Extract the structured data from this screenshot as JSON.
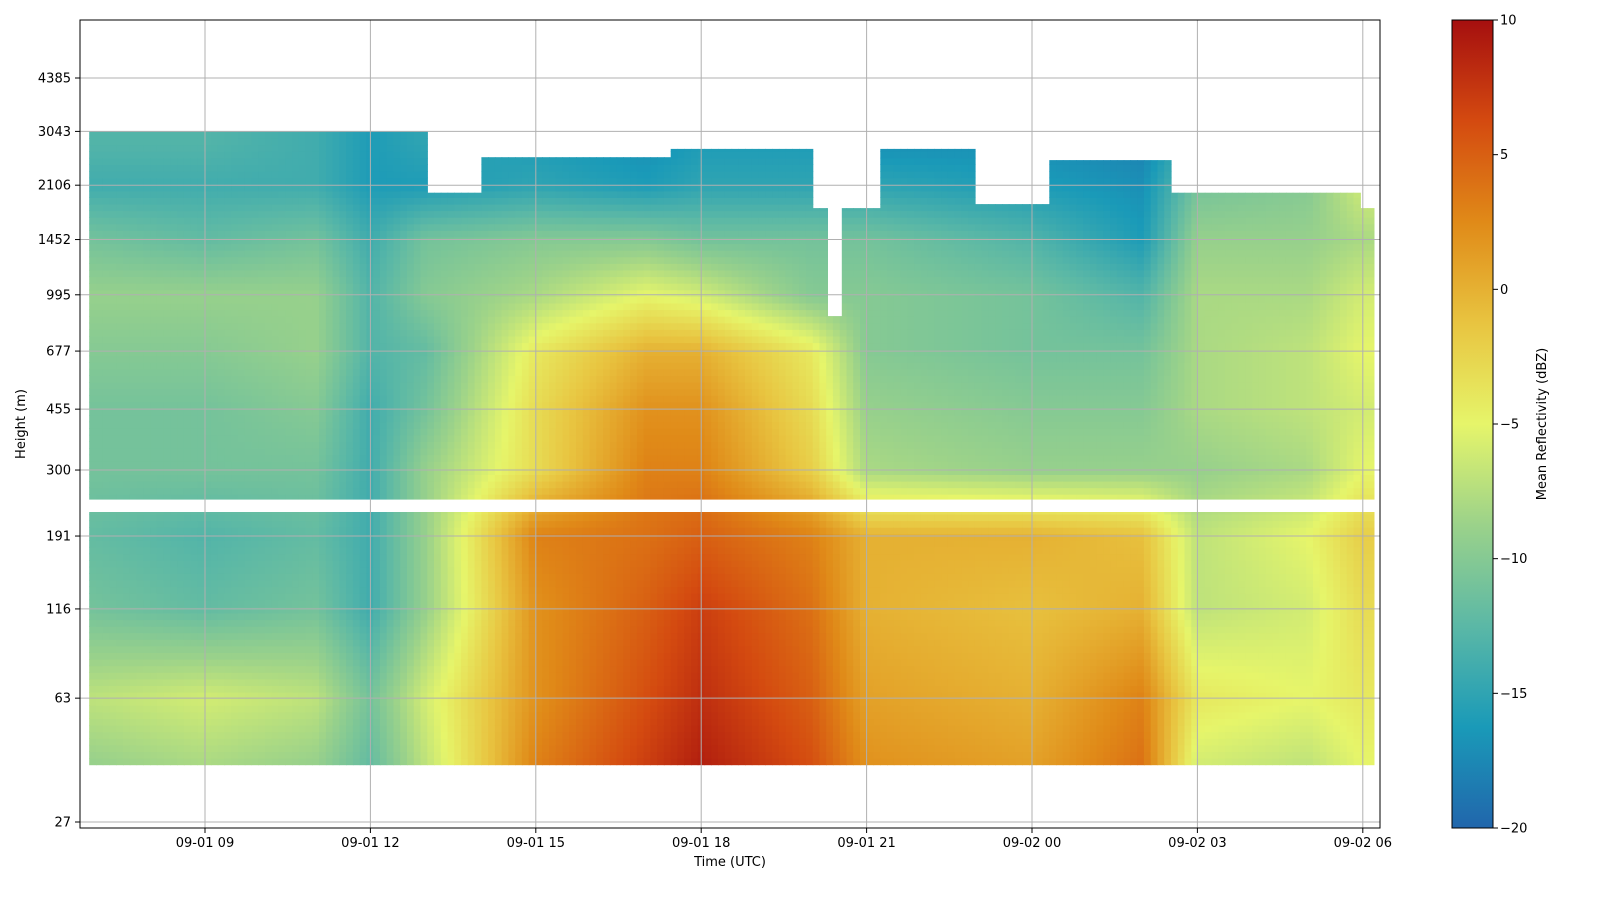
{
  "chart_data": {
    "type": "heatmap",
    "title": "",
    "xlabel": "Time (UTC)",
    "ylabel": "Height (m)",
    "x_ticks": [
      "09-01 09",
      "09-01 12",
      "09-01 15",
      "09-01 18",
      "09-01 21",
      "09-02 00",
      "09-02 03",
      "09-02 06"
    ],
    "y_ticks": [
      "27",
      "63",
      "116",
      "191",
      "300",
      "455",
      "677",
      "995",
      "1452",
      "2106",
      "3043",
      "4385"
    ],
    "y_scale": "log",
    "grid": true,
    "colorbar": {
      "label": "Mean Reflectivity (dBZ)",
      "range": [
        -20,
        10
      ],
      "ticks": [
        "10",
        "5",
        "0",
        "−5",
        "−10",
        "−15",
        "−20"
      ],
      "colormap": [
        "#2166ac",
        "#1a9ab8",
        "#5bb8a6",
        "#9bd28a",
        "#e6f56a",
        "#e8c440",
        "#e08a18",
        "#d44a10",
        "#a50f0f"
      ]
    },
    "series": [
      {
        "description": "Reflectivity field (dBZ), approximate profiles at selected times",
        "heights_m": [
          40,
          63,
          116,
          191,
          300,
          455,
          677,
          995,
          1452,
          2106,
          2800
        ],
        "profiles": [
          {
            "time": "09-01 07",
            "dbz": [
              -9,
              -7,
              -11,
              -12,
              -11,
              -11,
              -10,
              -9,
              -11,
              -14,
              -13
            ]
          },
          {
            "time": "09-01 09",
            "dbz": [
              -8,
              -6,
              -12,
              -13,
              -11,
              -11,
              -10,
              -9,
              -12,
              -14,
              -13
            ]
          },
          {
            "time": "09-01 11",
            "dbz": [
              -9,
              -7,
              -11,
              -12,
              -11,
              -10,
              -9,
              -9,
              -11,
              -14,
              -14
            ]
          },
          {
            "time": "09-01 12",
            "dbz": [
              -12,
              -11,
              -14,
              -14,
              -14,
              -14,
              -13,
              -13,
              -14,
              -16,
              -16
            ]
          },
          {
            "time": "09-01 13",
            "dbz": [
              -7,
              -6,
              -9,
              -9,
              -9,
              -11,
              -12,
              -10,
              -11,
              -16,
              -15
            ]
          },
          {
            "time": "09-01 15",
            "dbz": [
              3,
              2,
              2,
              3,
              -3,
              -3,
              -4,
              -8,
              -10,
              -15,
              -16
            ]
          },
          {
            "time": "09-01 17",
            "dbz": [
              7,
              6,
              5,
              4,
              3,
              2,
              0,
              -5,
              -10,
              -16,
              -17
            ]
          },
          {
            "time": "09-01 18",
            "dbz": [
              9,
              8,
              7,
              5,
              3,
              2,
              0,
              -6,
              -11,
              -15,
              -16
            ]
          },
          {
            "time": "09-01 20",
            "dbz": [
              6,
              5,
              4,
              3,
              -2,
              -3,
              -4,
              -10,
              -11,
              -15,
              -16
            ]
          },
          {
            "time": "09-01 21",
            "dbz": [
              2,
              1,
              0,
              0,
              -8,
              -9,
              -10,
              -10,
              -11,
              -15,
              -17
            ]
          },
          {
            "time": "09-02 00",
            "dbz": [
              1,
              0,
              -1,
              0,
              -9,
              -10,
              -11,
              -11,
              -13,
              -16,
              -17
            ]
          },
          {
            "time": "09-02 02",
            "dbz": [
              4,
              3,
              0,
              -1,
              -9,
              -10,
              -11,
              -13,
              -16,
              -17,
              -18
            ]
          },
          {
            "time": "09-02 03",
            "dbz": [
              -6,
              -4,
              -7,
              -7,
              -9,
              -8,
              -8,
              -8,
              -9,
              -11,
              -13
            ]
          },
          {
            "time": "09-02 05",
            "dbz": [
              -7,
              -5,
              -6,
              -5,
              -8,
              -7,
              -7,
              -8,
              -9,
              -10,
              -13
            ]
          },
          {
            "time": "09-02 06",
            "dbz": [
              -5,
              -4,
              -3,
              -2,
              -5,
              -6,
              -5,
              -6,
              -8,
              -6,
              -12
            ]
          }
        ]
      }
    ]
  }
}
